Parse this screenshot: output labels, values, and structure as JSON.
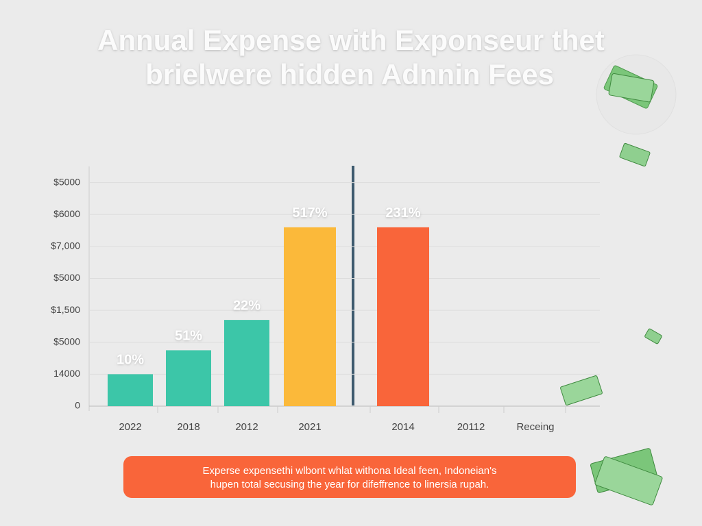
{
  "chart_data": {
    "type": "bar",
    "title": "Annual Expense with Exponseur thet",
    "subtitle": "brielwere hidden Adnnin Fees",
    "categories": [
      "2022",
      "2018",
      "2012",
      "2021",
      "2014",
      "20112",
      "Receing"
    ],
    "values": [
      1,
      1.75,
      2.7,
      5.6,
      5.6,
      null,
      null
    ],
    "value_labels": [
      "10%",
      "51%",
      "22%",
      "517%",
      "231%",
      null,
      null
    ],
    "colors": [
      "#3cc6a8",
      "#3cc6a8",
      "#3cc6a8",
      "#fbb93a",
      "#f9653a",
      null,
      null
    ],
    "ylim": [
      0,
      7.4
    ],
    "yticks": [
      {
        "value": 0,
        "label": "0"
      },
      {
        "value": 1,
        "label": "14000"
      },
      {
        "value": 2,
        "label": "$5000"
      },
      {
        "value": 3,
        "label": "$1,500"
      },
      {
        "value": 4,
        "label": "$5000"
      },
      {
        "value": 5,
        "label": "$7,000"
      },
      {
        "value": 6,
        "label": "$6000"
      },
      {
        "value": 7,
        "label": "$5000"
      }
    ],
    "grid": true,
    "caption": [
      "Experse expensethi wlbont whlat withona Ideal feen, Indoneian's",
      "hupen total secusing the year for difeffrence to linersia rupah."
    ]
  }
}
